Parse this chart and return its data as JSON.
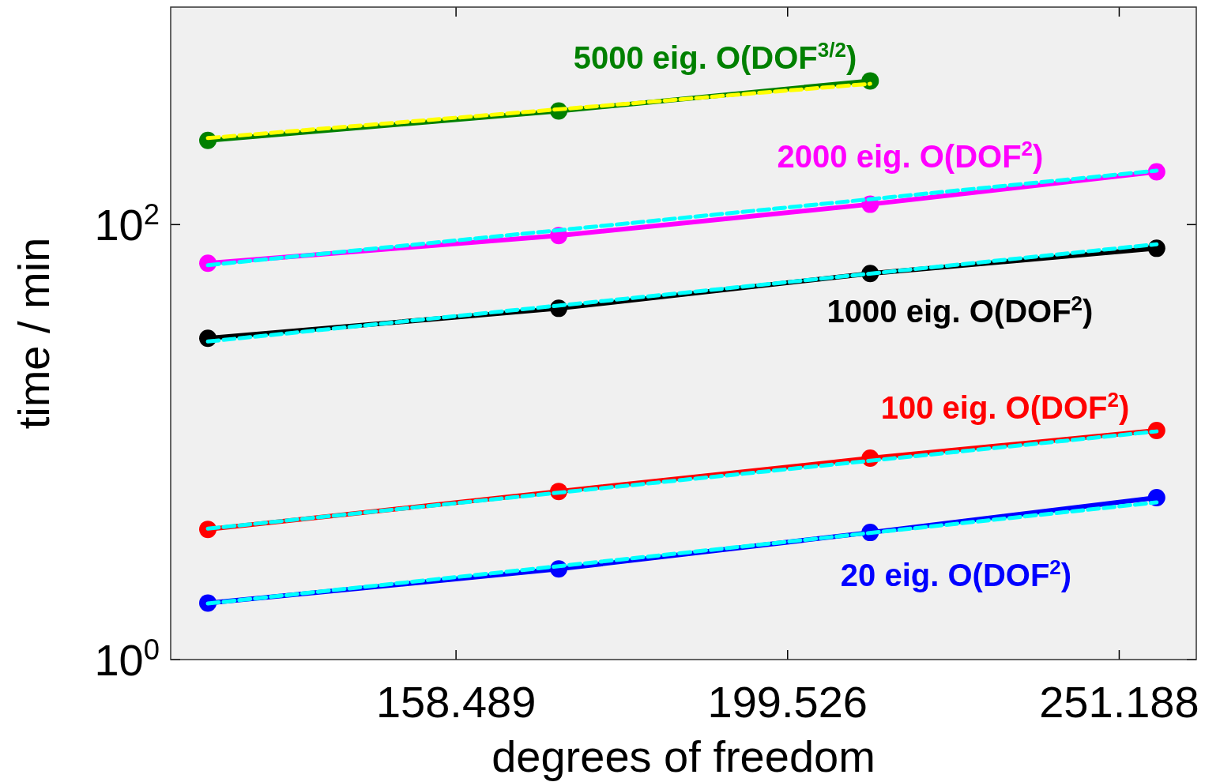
{
  "chart_data": {
    "type": "line",
    "xlabel": "degrees of freedom",
    "ylabel": "time / min",
    "log": "xy",
    "xlim": [
      130,
      265
    ],
    "ylim": [
      1,
      1000
    ],
    "xticks": [
      158.489,
      199.526,
      251.188
    ],
    "yticks": [
      {
        "value": 1,
        "label": "10$^{0}$"
      },
      {
        "value": 100,
        "label": "10$^{2}$"
      }
    ],
    "x": [
      133.4,
      170.2,
      211.3,
      257.8
    ],
    "grid": false,
    "series": [
      {
        "color": "#008000",
        "values": [
          244,
          333,
          458,
          null
        ],
        "marker": "circle",
        "line_style": "solid"
      },
      {
        "color": "#ff00ff",
        "values": [
          66.4,
          89,
          124,
          175
        ],
        "marker": "circle",
        "line_style": "solid"
      },
      {
        "color": "#000000",
        "values": [
          30.0,
          41.2,
          59.6,
          77.8
        ],
        "marker": "circle",
        "line_style": "solid"
      },
      {
        "color": "#ff0000",
        "values": [
          3.97,
          5.93,
          8.43,
          11.3
        ],
        "marker": "circle",
        "line_style": "solid"
      },
      {
        "color": "#0000ff",
        "values": [
          1.82,
          2.61,
          3.84,
          5.55
        ],
        "marker": "circle",
        "line_style": "solid"
      },
      {
        "color": "#ffff00",
        "x": [
          133.4,
          211.3
        ],
        "values": [
          250,
          444
        ],
        "marker": "none",
        "line_style": "dashed"
      },
      {
        "color": "#00ffff",
        "x": [
          133.4,
          257.8
        ],
        "values": [
          65.1,
          177
        ],
        "marker": "none",
        "line_style": "dashed"
      },
      {
        "color": "#00ffff",
        "x": [
          133.4,
          257.8
        ],
        "values": [
          29.0,
          81.2
        ],
        "marker": "none",
        "line_style": "dashed"
      },
      {
        "color": "#00ffff",
        "x": [
          133.4,
          257.8
        ],
        "values": [
          4.0,
          11.2
        ],
        "marker": "none",
        "line_style": "dashed"
      },
      {
        "color": "#00ffff",
        "x": [
          133.4,
          257.8
        ],
        "values": [
          1.81,
          5.28
        ],
        "marker": "none",
        "line_style": "dashed"
      }
    ],
    "annotations": [
      "5000 eig. O(DOF$^{3/2}$)",
      "2000 eig. O(DOF$^{2}$)",
      "1000 eig. O(DOF$^{2}$)",
      "100 eig. O(DOF$^{2}$)",
      "20 eig. O(DOF$^{2}$)"
    ]
  }
}
